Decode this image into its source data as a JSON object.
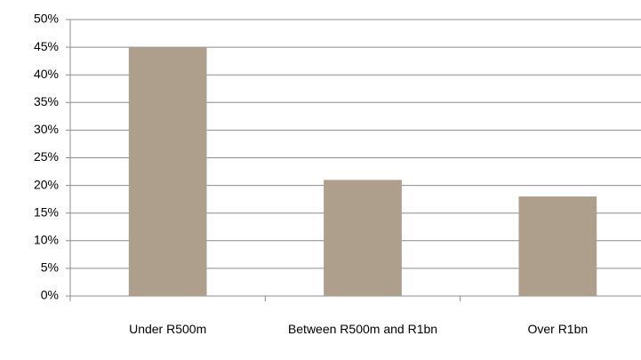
{
  "chart_data": {
    "type": "bar",
    "categories": [
      "Under R500m",
      "Between R500m and R1bn",
      "Over R1bn"
    ],
    "values": [
      45,
      21,
      18
    ],
    "color": "#ae9e8c",
    "ylim": [
      0,
      50
    ],
    "yticks": [
      {
        "value": 0,
        "label": "0%"
      },
      {
        "value": 5,
        "label": "5%"
      },
      {
        "value": 10,
        "label": "10%"
      },
      {
        "value": 15,
        "label": "15%"
      },
      {
        "value": 20,
        "label": "20%"
      },
      {
        "value": 25,
        "label": "25%"
      },
      {
        "value": 30,
        "label": "30%"
      },
      {
        "value": 35,
        "label": "35%"
      },
      {
        "value": 40,
        "label": "40%"
      },
      {
        "value": 45,
        "label": "45%"
      },
      {
        "value": 50,
        "label": "50%"
      }
    ],
    "grid": true
  }
}
